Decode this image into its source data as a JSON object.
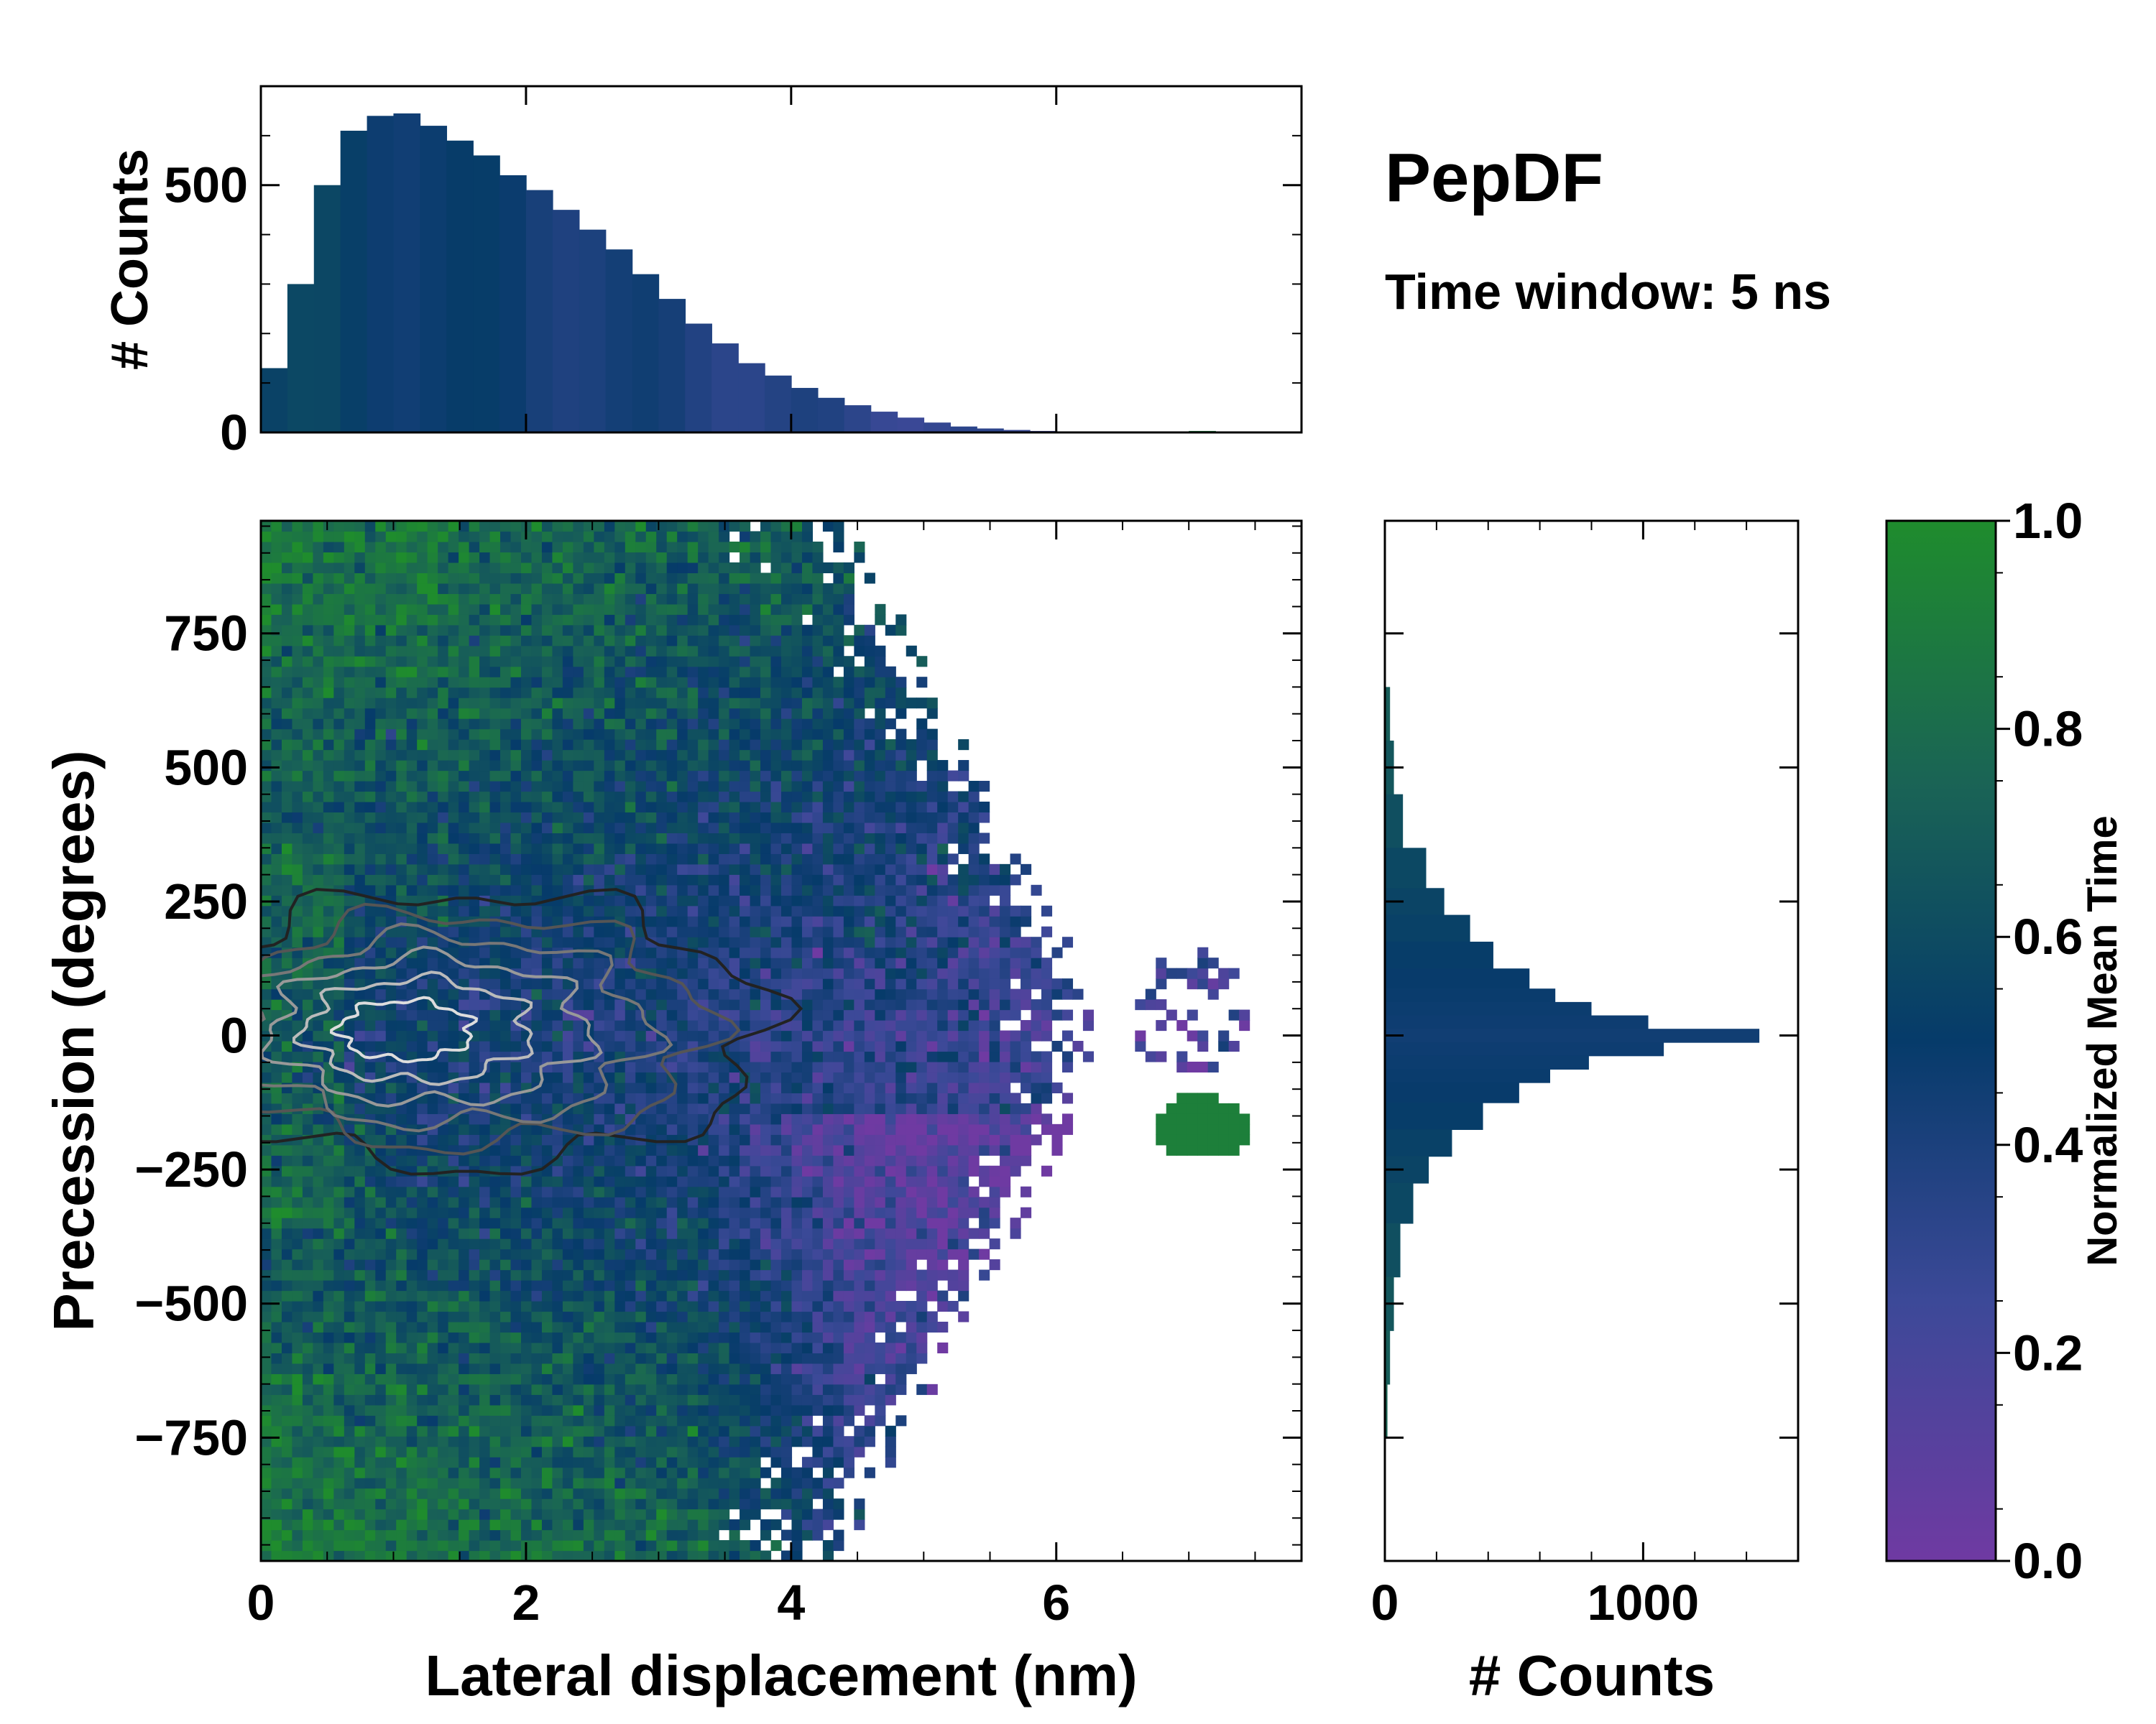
{
  "chart_data": {
    "type": "heatmap",
    "title": "PepDF",
    "subtitle": "Time window: 5 ns",
    "main": {
      "xlabel": "Lateral displacement (nm)",
      "ylabel": "Precession (degrees)",
      "xlim": [
        0,
        7.85
      ],
      "ylim": [
        -980,
        960
      ],
      "xticks": [
        0,
        2,
        4,
        6
      ],
      "xtick_labels": [
        "0",
        "2",
        "4",
        "6"
      ],
      "yticks": [
        750,
        500,
        250,
        0,
        -250,
        -500,
        -750
      ],
      "ytick_labels": [
        "750",
        "500",
        "250",
        "0",
        "−250",
        "−500",
        "−750"
      ],
      "density_peak": {
        "x": 1.0,
        "y": 10
      },
      "contour_levels": 6
    },
    "top_histogram": {
      "ylabel": "# Counts",
      "ylim": [
        0,
        700
      ],
      "yticks": [
        0,
        500
      ],
      "ytick_labels": [
        "0",
        "500"
      ],
      "x": [
        0.1,
        0.3,
        0.5,
        0.7,
        0.9,
        1.1,
        1.3,
        1.5,
        1.7,
        1.9,
        2.1,
        2.3,
        2.5,
        2.7,
        2.9,
        3.1,
        3.3,
        3.5,
        3.7,
        3.9,
        4.1,
        4.3,
        4.5,
        4.7,
        4.9,
        5.1,
        5.3,
        5.5,
        5.7,
        5.9,
        6.1,
        6.3,
        6.5,
        6.7,
        6.9,
        7.1,
        7.3,
        7.5,
        7.7
      ],
      "counts": [
        130,
        300,
        500,
        610,
        640,
        645,
        620,
        590,
        560,
        520,
        490,
        450,
        410,
        370,
        320,
        270,
        220,
        180,
        140,
        115,
        90,
        70,
        55,
        42,
        30,
        20,
        12,
        8,
        5,
        3,
        2,
        2,
        1,
        1,
        2,
        3,
        2,
        1,
        0
      ]
    },
    "right_histogram": {
      "xlabel": "# Counts",
      "xlim": [
        0,
        1600
      ],
      "xticks": [
        0,
        1000
      ],
      "xtick_labels": [
        "0",
        "1000"
      ],
      "y": [
        600,
        500,
        400,
        300,
        250,
        200,
        150,
        100,
        75,
        50,
        25,
        0,
        -25,
        -50,
        -75,
        -100,
        -150,
        -200,
        -250,
        -300,
        -400,
        -500,
        -600,
        -700
      ],
      "counts": [
        20,
        35,
        70,
        160,
        230,
        330,
        420,
        560,
        660,
        800,
        1020,
        1450,
        1080,
        790,
        640,
        520,
        380,
        260,
        170,
        110,
        60,
        35,
        20,
        10
      ]
    },
    "colorbar": {
      "label": "Normalized Mean Time",
      "range": [
        0,
        1
      ],
      "ticks": [
        0.0,
        0.2,
        0.4,
        0.6,
        0.8,
        1.0
      ],
      "tick_labels": [
        "0.0",
        "0.2",
        "0.4",
        "0.6",
        "0.8",
        "1.0"
      ],
      "colors": [
        "#6f3aa2",
        "#3c4998",
        "#063b6a",
        "#1a6455",
        "#1f8c2d"
      ]
    }
  }
}
